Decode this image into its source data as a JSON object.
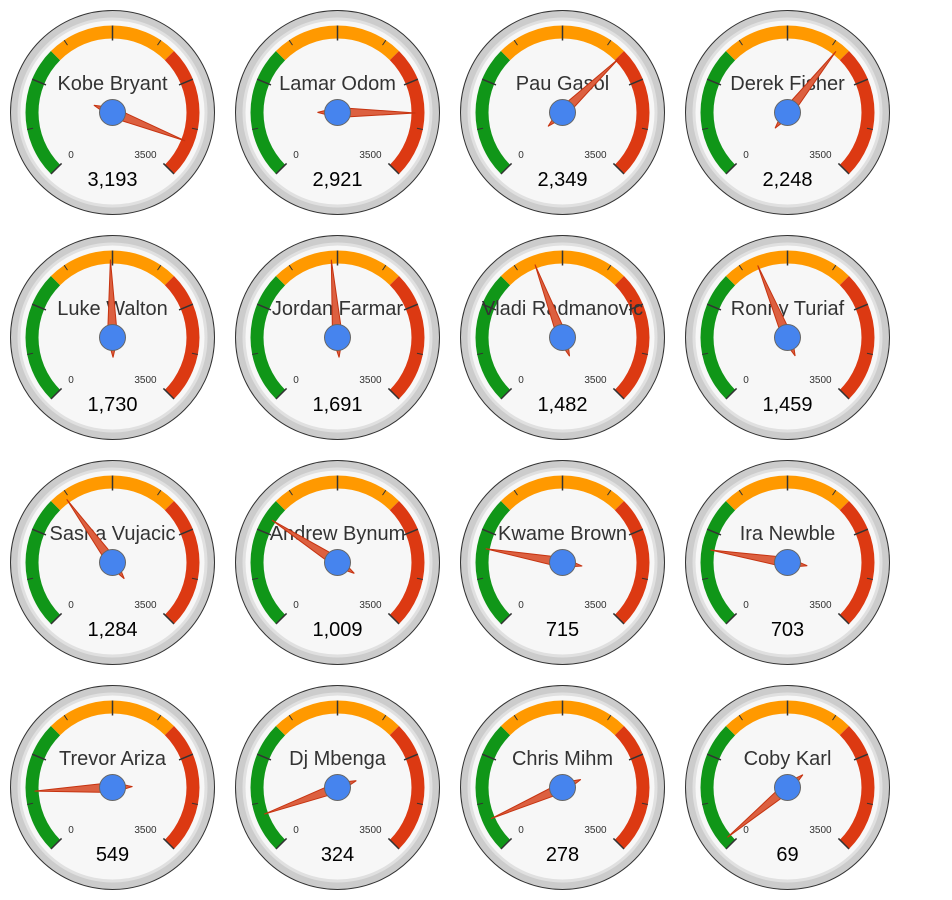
{
  "chart_data": {
    "type": "gauge",
    "min": 0,
    "max": 3500,
    "min_label": "0",
    "max_label": "3500",
    "bands": [
      {
        "from": 0,
        "to": 1166,
        "color": "#109618"
      },
      {
        "from": 1166,
        "to": 2333,
        "color": "#ff9900"
      },
      {
        "from": 2333,
        "to": 3500,
        "color": "#dc3912"
      }
    ],
    "gauges": [
      {
        "name": "Kobe Bryant",
        "value": 3193,
        "display": "3,193"
      },
      {
        "name": "Lamar Odom",
        "value": 2921,
        "display": "2,921"
      },
      {
        "name": "Pau Gasol",
        "value": 2349,
        "display": "2,349"
      },
      {
        "name": "Derek Fisher",
        "value": 2248,
        "display": "2,248"
      },
      {
        "name": "Luke Walton",
        "value": 1730,
        "display": "1,730"
      },
      {
        "name": "Jordan Farmar",
        "value": 1691,
        "display": "1,691"
      },
      {
        "name": "Vladi Radmanovic",
        "value": 1482,
        "display": "1,482"
      },
      {
        "name": "Ronny Turiaf",
        "value": 1459,
        "display": "1,459"
      },
      {
        "name": "Sasha Vujacic",
        "value": 1284,
        "display": "1,284"
      },
      {
        "name": "Andrew Bynum",
        "value": 1009,
        "display": "1,009"
      },
      {
        "name": "Kwame Brown",
        "value": 715,
        "display": "715"
      },
      {
        "name": "Ira Newble",
        "value": 703,
        "display": "703"
      },
      {
        "name": "Trevor Ariza",
        "value": 549,
        "display": "549"
      },
      {
        "name": "Dj Mbenga",
        "value": 324,
        "display": "324"
      },
      {
        "name": "Chris Mihm",
        "value": 278,
        "display": "278"
      },
      {
        "name": "Coby Karl",
        "value": 69,
        "display": "69"
      }
    ]
  },
  "colors": {
    "face": "#f7f7f7",
    "rim_outer": "#cccccc",
    "rim_inner": "#e0e0e0",
    "needle": "#dc6040",
    "hub": "#4684ee",
    "text": "#333333",
    "value_text": "#000000"
  }
}
